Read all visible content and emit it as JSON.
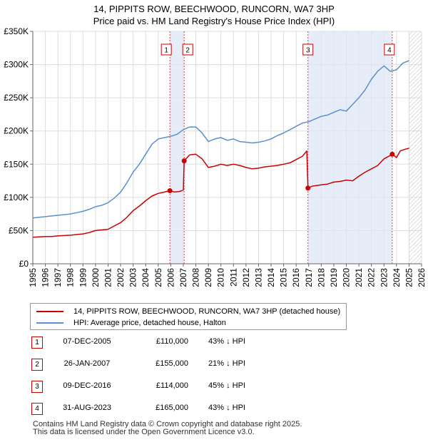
{
  "title_line1": "14, PIPPITS ROW, BEECHWOOD, RUNCORN, WA7 3HP",
  "title_line2": "Price paid vs. HM Land Registry's House Price Index (HPI)",
  "legend": {
    "red_label": "14, PIPPITS ROW, BEECHWOOD, RUNCORN, WA7 3HP (detached house)",
    "blue_label": "HPI: Average price, detached house, Halton"
  },
  "colors": {
    "red": "#cc0000",
    "blue": "#5b8fcf",
    "shade": "#dde6f5",
    "grid": "#dddddd"
  },
  "transactions": [
    {
      "num": "1",
      "date": "07-DEC-2005",
      "price": "£110,000",
      "hpi": "43% ↓ HPI"
    },
    {
      "num": "2",
      "date": "26-JAN-2007",
      "price": "£155,000",
      "hpi": "21% ↓ HPI"
    },
    {
      "num": "3",
      "date": "09-DEC-2016",
      "price": "£114,000",
      "hpi": "45% ↓ HPI"
    },
    {
      "num": "4",
      "date": "31-AUG-2023",
      "price": "£165,000",
      "hpi": "43% ↓ HPI"
    }
  ],
  "footer": {
    "line1": "Contains HM Land Registry data © Crown copyright and database right 2025.",
    "line2": "This data is licensed under the Open Government Licence v3.0."
  },
  "chart_data": {
    "type": "line",
    "title": "14, PIPPITS ROW, BEECHWOOD, RUNCORN, WA7 3HP",
    "subtitle": "Price paid vs. HM Land Registry's House Price Index (HPI)",
    "xlabel": "",
    "ylabel": "",
    "xlim": [
      1995,
      2026
    ],
    "ylim": [
      0,
      350000
    ],
    "x_ticks": [
      "1995",
      "1996",
      "1997",
      "1998",
      "1999",
      "2000",
      "2001",
      "2002",
      "2003",
      "2004",
      "2005",
      "2006",
      "2007",
      "2008",
      "2009",
      "2010",
      "2011",
      "2012",
      "2013",
      "2014",
      "2015",
      "2016",
      "2017",
      "2018",
      "2019",
      "2020",
      "2021",
      "2022",
      "2023",
      "2024",
      "2025",
      "2026"
    ],
    "y_ticks": [
      {
        "value": 0,
        "label": "£0"
      },
      {
        "value": 50000,
        "label": "£50K"
      },
      {
        "value": 100000,
        "label": "£100K"
      },
      {
        "value": 150000,
        "label": "£150K"
      },
      {
        "value": 200000,
        "label": "£200K"
      },
      {
        "value": 250000,
        "label": "£250K"
      },
      {
        "value": 300000,
        "label": "£300K"
      },
      {
        "value": 350000,
        "label": "£350K"
      }
    ],
    "grid": true,
    "shaded_periods": [
      {
        "from": 2005.93,
        "to": 2007.07
      },
      {
        "from": 2016.94,
        "to": 2023.66
      }
    ],
    "future_hatch_from": 2025.0,
    "sale_markers": [
      {
        "label": "1",
        "x": 2005.93,
        "y": 110000
      },
      {
        "label": "2",
        "x": 2007.07,
        "y": 155000
      },
      {
        "label": "3",
        "x": 2016.94,
        "y": 114000
      },
      {
        "label": "4",
        "x": 2023.66,
        "y": 165000
      }
    ],
    "series": [
      {
        "name": "14, PIPPITS ROW, BEECHWOOD, RUNCORN, WA7 3HP (detached house)",
        "color": "#cc0000",
        "x": [
          1995,
          1995.5,
          1996,
          1996.5,
          1997,
          1997.5,
          1998,
          1998.5,
          1999,
          1999.5,
          2000,
          2000.5,
          2001,
          2001.5,
          2002,
          2002.5,
          2003,
          2003.5,
          2004,
          2004.5,
          2005,
          2005.5,
          2005.93,
          2006.3,
          2006.7,
          2007.0,
          2007.07,
          2007.5,
          2008,
          2008.5,
          2009,
          2009.5,
          2010,
          2010.5,
          2011,
          2011.5,
          2012,
          2012.5,
          2013,
          2013.5,
          2014,
          2014.5,
          2015,
          2015.5,
          2016,
          2016.5,
          2016.85,
          2016.94,
          2017.3,
          2017.7,
          2018,
          2018.5,
          2019,
          2019.5,
          2020,
          2020.5,
          2021,
          2021.5,
          2022,
          2022.5,
          2023,
          2023.4,
          2023.66,
          2024,
          2024.3,
          2024.6,
          2025
        ],
        "y": [
          40000,
          40500,
          41000,
          41000,
          42000,
          42500,
          43000,
          44000,
          45000,
          47000,
          50000,
          51000,
          52000,
          57000,
          62000,
          70000,
          80000,
          87000,
          95000,
          102000,
          106000,
          108000,
          110000,
          108000,
          109000,
          111000,
          155000,
          164000,
          165000,
          158000,
          145000,
          147000,
          150000,
          148000,
          150000,
          148000,
          145000,
          143000,
          144000,
          146000,
          147000,
          148000,
          150000,
          152000,
          157000,
          162000,
          170000,
          114000,
          117000,
          118000,
          119000,
          120000,
          123000,
          124000,
          126000,
          125000,
          132000,
          138000,
          143000,
          148000,
          158000,
          162000,
          165000,
          160000,
          170000,
          172000,
          174000
        ]
      },
      {
        "name": "HPI: Average price, detached house, Halton",
        "color": "#5b8fcf",
        "x": [
          1995,
          1995.5,
          1996,
          1996.5,
          1997,
          1997.5,
          1998,
          1998.5,
          1999,
          1999.5,
          2000,
          2000.5,
          2001,
          2001.5,
          2002,
          2002.5,
          2003,
          2003.5,
          2004,
          2004.5,
          2005,
          2005.5,
          2006,
          2006.5,
          2007,
          2007.5,
          2008,
          2008.5,
          2009,
          2009.5,
          2010,
          2010.5,
          2011,
          2011.5,
          2012,
          2012.5,
          2013,
          2013.5,
          2014,
          2014.5,
          2015,
          2015.5,
          2016,
          2016.5,
          2017,
          2017.5,
          2018,
          2018.5,
          2019,
          2019.5,
          2020,
          2020.5,
          2021,
          2021.5,
          2022,
          2022.5,
          2023,
          2023.5,
          2024,
          2024.5,
          2025
        ],
        "y": [
          69000,
          70000,
          71000,
          72000,
          73000,
          74000,
          75000,
          77000,
          79000,
          82000,
          86000,
          88000,
          92000,
          99000,
          108000,
          122000,
          138000,
          150000,
          165000,
          180000,
          188000,
          190000,
          192000,
          195000,
          202000,
          206000,
          206000,
          197000,
          184000,
          188000,
          190000,
          186000,
          188000,
          184000,
          183000,
          182000,
          183000,
          185000,
          188000,
          193000,
          197000,
          202000,
          207000,
          212000,
          214000,
          218000,
          222000,
          224000,
          228000,
          232000,
          230000,
          240000,
          250000,
          262000,
          278000,
          290000,
          298000,
          290000,
          292000,
          302000,
          306000
        ]
      }
    ]
  }
}
